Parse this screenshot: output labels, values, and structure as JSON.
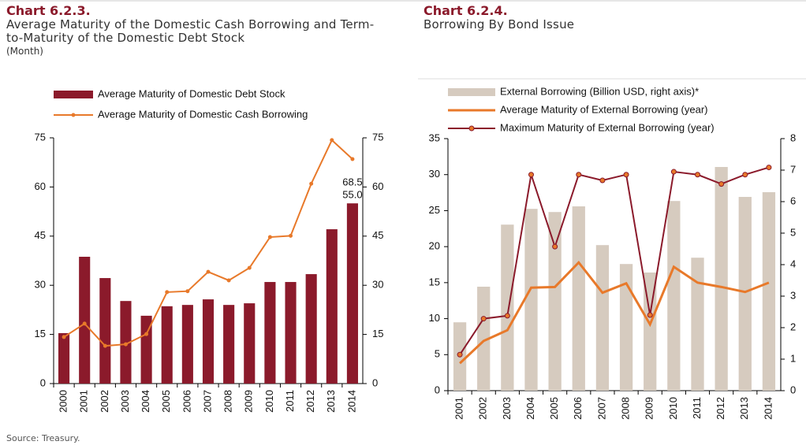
{
  "chart_data": [
    {
      "type": "combo",
      "title": "Chart 6.2.3.",
      "subtitle": "Average Maturity of the Domestic Cash Borrowing and Term-to-Maturity of the Domestic Debt Stock",
      "unit": "(Month)",
      "categories": [
        "2000",
        "2001",
        "2002",
        "2003",
        "2004",
        "2005",
        "2006",
        "2007",
        "2008",
        "2009",
        "2010",
        "2011",
        "2012",
        "2013",
        "2014"
      ],
      "ylim": [
        0,
        75
      ],
      "yticks": [
        0,
        15,
        30,
        45,
        60,
        75
      ],
      "y2lim": [
        0,
        75
      ],
      "y2ticks": [
        0,
        15,
        30,
        45,
        60,
        75
      ],
      "series": [
        {
          "name": "Average Maturity of Domestic Debt Stock",
          "type": "bar",
          "color": "#8b1a2b",
          "values": [
            15.4,
            38.7,
            32.2,
            25.2,
            20.7,
            23.6,
            24,
            25.7,
            24,
            24.5,
            31,
            31,
            33.4,
            47.1,
            55.0
          ],
          "value_labels": [
            null,
            null,
            null,
            null,
            null,
            null,
            null,
            null,
            null,
            null,
            null,
            null,
            null,
            null,
            "55.0"
          ]
        },
        {
          "name": "Average Maturity of Domestic Cash Borrowing",
          "type": "line",
          "color": "#e8792a",
          "markers": true,
          "values": [
            14.2,
            18.3,
            11.5,
            12,
            15.1,
            27.9,
            28.2,
            34.1,
            31.5,
            35.3,
            44.7,
            45.1,
            61,
            74.3,
            68.5
          ],
          "value_labels": [
            null,
            null,
            null,
            null,
            null,
            null,
            null,
            null,
            null,
            null,
            null,
            null,
            null,
            null,
            "68.5"
          ]
        }
      ]
    },
    {
      "type": "combo",
      "title": "Chart 6.2.4.",
      "subtitle": "Borrowing By Bond Issue",
      "categories": [
        "2001",
        "2002",
        "2003",
        "2004",
        "2005",
        "2006",
        "2007",
        "2008",
        "2009",
        "2010",
        "2011",
        "2012",
        "2013",
        "2014"
      ],
      "ylim": [
        0,
        35
      ],
      "yticks": [
        0,
        5,
        10,
        15,
        20,
        25,
        30,
        35
      ],
      "y2lim": [
        0,
        8
      ],
      "y2ticks": [
        0,
        1,
        2,
        3,
        4,
        5,
        6,
        7,
        8
      ],
      "series": [
        {
          "name": "External Borrowing (Billion USD, right axis)*",
          "type": "bar",
          "axis": "y2",
          "color": "#d6cbbf",
          "values": [
            2.17,
            3.3,
            5.27,
            5.77,
            5.67,
            5.85,
            4.62,
            4.02,
            3.75,
            6.02,
            4.22,
            7.1,
            6.15,
            6.3
          ]
        },
        {
          "name": "Average Maturity of External Borrowing (year)",
          "type": "line",
          "color": "#e8792a",
          "width": 3,
          "values": [
            3.8,
            6.9,
            8.4,
            14.3,
            14.4,
            17.8,
            13.6,
            14.9,
            9.2,
            17.2,
            15,
            14.4,
            13.7,
            15
          ]
        },
        {
          "name": "Maximum Maturity of External Borrowing (year)",
          "type": "line",
          "color": "#8b1a2b",
          "markers": true,
          "values": [
            5,
            10,
            10.4,
            30,
            20,
            30,
            29.2,
            30,
            10.5,
            30.4,
            30,
            28.7,
            30,
            31
          ]
        }
      ]
    }
  ],
  "source": "Source: Treasury."
}
